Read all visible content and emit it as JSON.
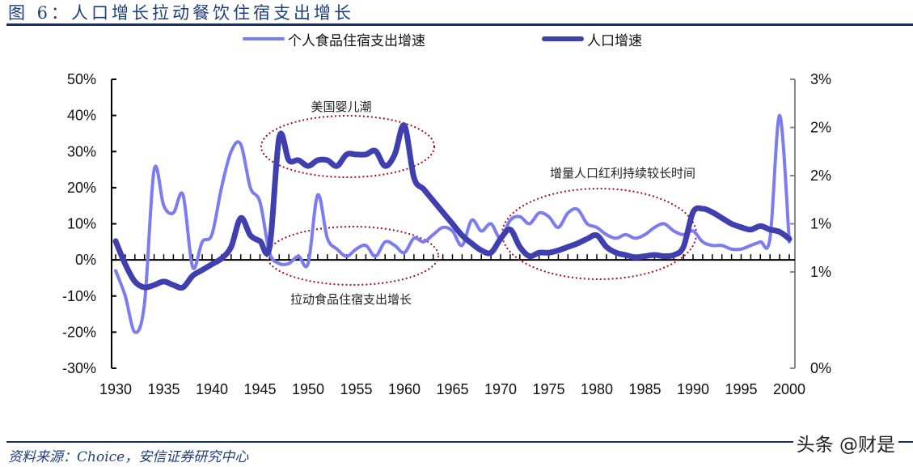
{
  "header": {
    "title": "图 6：人口增长拉动餐饮住宿支出增长"
  },
  "legend": {
    "items": [
      {
        "label": "个人食品住宿支出增速",
        "color": "#7b7bf2"
      },
      {
        "label": "人口增速",
        "color": "#3f3fb0"
      }
    ]
  },
  "annotations": {
    "baby_boom": "美国婴儿潮",
    "spending_growth": "拉动食品住宿支出增长",
    "dividend": "增量人口红利持续较长时间"
  },
  "footer": {
    "source": "资料来源：Choice，安信证券研究中心",
    "watermark": "头条 @财是"
  },
  "axes": {
    "left_ticks": [
      "50%",
      "40%",
      "30%",
      "20%",
      "10%",
      "0%",
      "-10%",
      "-20%",
      "-30%"
    ],
    "right_ticks": [
      "3%",
      "2%",
      "2%",
      "1%",
      "1%",
      "0%"
    ],
    "x_ticks": [
      "1930",
      "1935",
      "1940",
      "1945",
      "1950",
      "1955",
      "1960",
      "1965",
      "1970",
      "1975",
      "1980",
      "1985",
      "1990",
      "1995",
      "2000"
    ]
  },
  "chart_data": {
    "type": "line",
    "title": "图 6：人口增长拉动餐饮住宿支出增长",
    "xlabel": "",
    "ylabel": "",
    "x": [
      1930,
      1931,
      1932,
      1933,
      1934,
      1935,
      1936,
      1937,
      1938,
      1939,
      1940,
      1941,
      1942,
      1943,
      1944,
      1945,
      1946,
      1947,
      1948,
      1949,
      1950,
      1951,
      1952,
      1953,
      1954,
      1955,
      1956,
      1957,
      1958,
      1959,
      1960,
      1961,
      1962,
      1963,
      1964,
      1965,
      1966,
      1967,
      1968,
      1969,
      1970,
      1971,
      1972,
      1973,
      1974,
      1975,
      1976,
      1977,
      1978,
      1979,
      1980,
      1981,
      1982,
      1983,
      1984,
      1985,
      1986,
      1987,
      1988,
      1989,
      1990,
      1991,
      1992,
      1993,
      1994,
      1995,
      1996,
      1997,
      1998,
      1999,
      2000
    ],
    "series": [
      {
        "name": "个人食品住宿支出增速",
        "axis": "left",
        "color": "#7b7bf2",
        "values": [
          -3,
          -10,
          -20,
          -12,
          25,
          15,
          13,
          18,
          -2,
          5,
          7,
          20,
          30,
          32,
          20,
          16,
          2,
          -1,
          -1,
          1,
          -1,
          18,
          6,
          3,
          1,
          3,
          4,
          1,
          5,
          4,
          2,
          6,
          5,
          7,
          9,
          8,
          4,
          11,
          8,
          10,
          6,
          11,
          12,
          10,
          13,
          12,
          9,
          13,
          14,
          10,
          9,
          7,
          6,
          7,
          6,
          7,
          9,
          10,
          8,
          7,
          8,
          5,
          4,
          4,
          3,
          3,
          4,
          5,
          6,
          40,
          5
        ]
      },
      {
        "name": "人口增速",
        "axis": "right",
        "color": "#3f3fb0",
        "values": [
          1.1,
          0.9,
          0.75,
          0.7,
          0.72,
          0.75,
          0.72,
          0.7,
          0.8,
          0.85,
          0.9,
          0.95,
          1.05,
          1.3,
          1.15,
          1.1,
          1.05,
          2.0,
          1.8,
          1.8,
          1.75,
          1.8,
          1.8,
          1.75,
          1.85,
          1.85,
          1.85,
          1.88,
          1.75,
          1.85,
          2.1,
          1.65,
          1.55,
          1.45,
          1.35,
          1.25,
          1.15,
          1.08,
          1.02,
          1.0,
          1.12,
          1.2,
          1.05,
          0.97,
          1.0,
          1.0,
          1.02,
          1.05,
          1.08,
          1.12,
          1.15,
          1.05,
          1.0,
          0.98,
          0.96,
          0.97,
          0.98,
          0.97,
          0.98,
          1.05,
          1.35,
          1.38,
          1.35,
          1.3,
          1.25,
          1.22,
          1.2,
          1.23,
          1.2,
          1.18,
          1.12
        ]
      }
    ],
    "left_ylim": [
      -30,
      50
    ],
    "right_ylim": [
      0,
      2.5
    ],
    "xlim": [
      1930,
      2000
    ],
    "grid": false,
    "legend_position": "top",
    "annotations": [
      "美国婴儿潮",
      "拉动食品住宿支出增长",
      "增量人口红利持续较长时间"
    ]
  }
}
